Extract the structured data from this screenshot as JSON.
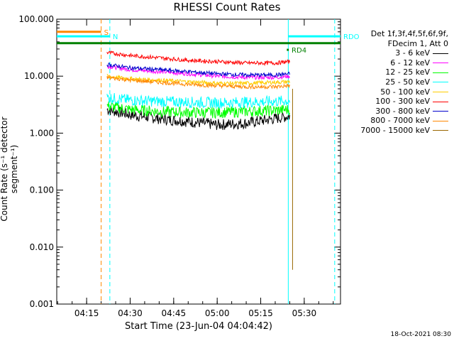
{
  "title": "RHESSI Count Rates",
  "xlabel": "Start Time (23-Jun-04 04:04:42)",
  "ylabel": "Count Rate (s⁻¹ detector segment⁻¹)",
  "stamp": "18-Oct-2021 08:30",
  "legend": {
    "header1": "Det 1f,3f,4f,5f,6f,9f,",
    "header2": "FDecim 1, Att 0",
    "items": [
      {
        "label": "3 - 6 keV",
        "color": "#000000"
      },
      {
        "label": "6 - 12 keV",
        "color": "#ff00ff"
      },
      {
        "label": "12 - 25 keV",
        "color": "#00ff00"
      },
      {
        "label": "25 - 50 keV",
        "color": "#00ffff"
      },
      {
        "label": "50 - 100 keV",
        "color": "#ffcc00"
      },
      {
        "label": "100 - 300 keV",
        "color": "#ff0000"
      },
      {
        "label": "300 - 800 keV",
        "color": "#0000cc"
      },
      {
        "label": "800 - 7000 keV",
        "color": "#ff8800"
      },
      {
        "label": "7000 - 15000 keV",
        "color": "#996600"
      }
    ]
  },
  "chart_data": {
    "type": "line",
    "title": "RHESSI Count Rates",
    "xlabel": "Start Time (23-Jun-04 04:04:42)",
    "ylabel": "Count Rate (s⁻¹ detector segment⁻¹)",
    "yscale": "log",
    "ylim": [
      0.001,
      100
    ],
    "xlim": [
      "04:04:42",
      "05:42:30"
    ],
    "xticks": [
      "04:15",
      "04:30",
      "04:45",
      "05:00",
      "05:15",
      "05:30"
    ],
    "yticks": [
      "0.001",
      "0.010",
      "0.100",
      "1.000",
      "10.000",
      "100.000"
    ],
    "x": [
      "04:22",
      "04:30",
      "04:40",
      "04:50",
      "05:00",
      "05:10",
      "05:20",
      "05:25"
    ],
    "series": [
      {
        "name": "3 - 6 keV",
        "color": "#000000",
        "values": [
          2.6,
          2.1,
          1.8,
          1.6,
          1.4,
          1.5,
          1.8,
          2.0
        ]
      },
      {
        "name": "6 - 12 keV",
        "color": "#ff00ff",
        "values": [
          15,
          13,
          12,
          11,
          10,
          9.5,
          9.5,
          10
        ]
      },
      {
        "name": "12 - 25 keV",
        "color": "#00ff00",
        "values": [
          3.0,
          2.6,
          2.4,
          2.3,
          2.3,
          2.4,
          2.5,
          2.6
        ]
      },
      {
        "name": "25 - 50 keV",
        "color": "#00ffff",
        "values": [
          4.2,
          3.8,
          3.6,
          3.5,
          3.4,
          3.5,
          3.6,
          3.7
        ]
      },
      {
        "name": "50 - 100 keV",
        "color": "#ffcc00",
        "values": [
          10,
          9.0,
          8.5,
          8.0,
          7.5,
          7.5,
          7.8,
          8.0
        ]
      },
      {
        "name": "100 - 300 keV",
        "color": "#ff0000",
        "values": [
          26,
          23,
          21,
          19,
          18,
          17,
          17,
          18
        ]
      },
      {
        "name": "300 - 800 keV",
        "color": "#0000cc",
        "values": [
          16,
          14,
          13,
          12,
          11,
          10.5,
          10.5,
          11
        ]
      },
      {
        "name": "800 - 7000 keV",
        "color": "#ff8800",
        "values": [
          9.5,
          8.5,
          7.8,
          7.2,
          6.8,
          6.5,
          6.5,
          6.8
        ]
      },
      {
        "name": "7000 - 15000 keV",
        "color": "#996600",
        "values": [
          null,
          null,
          null,
          null,
          null,
          null,
          null,
          6.0
        ]
      }
    ],
    "flags": [
      {
        "label": "S",
        "color": "#ff8800",
        "start": "04:04:42",
        "end": "04:20:00",
        "level": 60
      },
      {
        "label": "N",
        "color": "#00ffff",
        "start": "04:04:42",
        "end": "04:23:00",
        "level": 50
      },
      {
        "label": "",
        "color": "#008000",
        "start": "04:04:42",
        "end": "05:42:30",
        "level": 38
      },
      {
        "label": "RD4",
        "color": "#008000",
        "start": "05:24:00",
        "end": "05:24:40",
        "level": 29
      },
      {
        "label": "RDO",
        "color": "#00ffff",
        "start": "05:24:30",
        "end": "05:42:30",
        "level": 50
      }
    ],
    "vlines": [
      {
        "time": "04:20:00",
        "color": "#ff8800",
        "dashed": true
      },
      {
        "time": "04:23:00",
        "color": "#00ffff",
        "dashed": true
      },
      {
        "time": "05:24:30",
        "color": "#00ffff",
        "dashed": false
      },
      {
        "time": "05:40:30",
        "color": "#00ffff",
        "dashed": true
      }
    ],
    "grid": false,
    "legend_position": "right"
  }
}
